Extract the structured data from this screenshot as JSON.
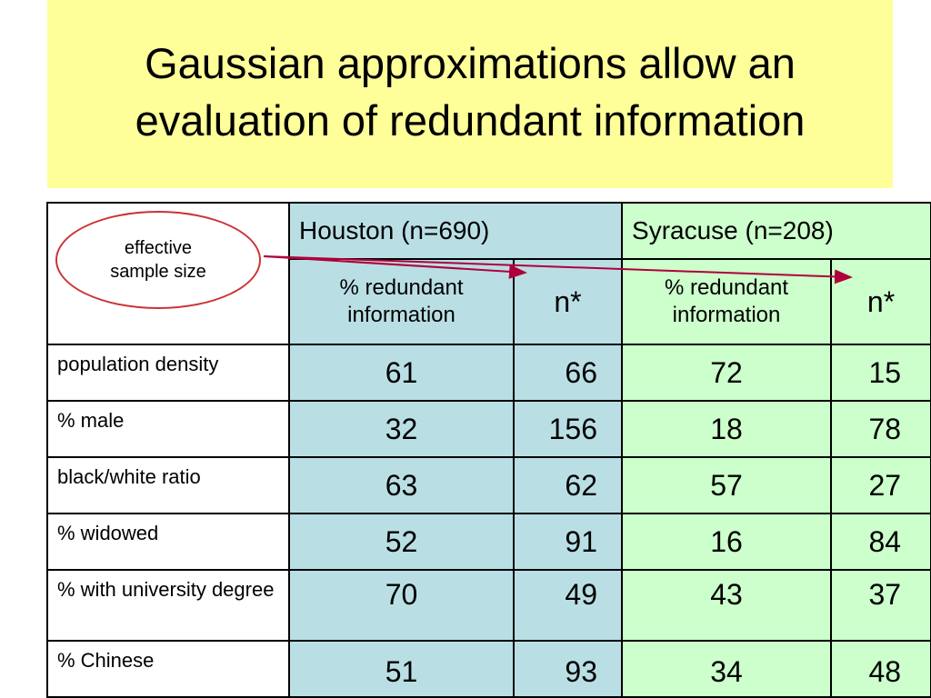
{
  "slide": {
    "title": "Gaussian approximations allow an\nevaluation of redundant information"
  },
  "callout": {
    "text": "effective\nsample size"
  },
  "colors": {
    "title_bg": "#ffff99",
    "houston_bg": "#b9dfe5",
    "syracuse_bg": "#ccffcc",
    "arrow": "#b0003a"
  },
  "table": {
    "houston_header": "Houston (n=690)",
    "syracuse_header": "Syracuse (n=208)",
    "sub_redundant": "% redundant\ninformation",
    "sub_n": "n*",
    "rows": [
      {
        "label": "population density",
        "h_red": "61",
        "h_n": "66",
        "s_red": "72",
        "s_n": "15"
      },
      {
        "label": "% male",
        "h_red": "32",
        "h_n": "156",
        "s_red": "18",
        "s_n": "78"
      },
      {
        "label": "black/white ratio",
        "h_red": "63",
        "h_n": "62",
        "s_red": "57",
        "s_n": "27"
      },
      {
        "label": "% widowed",
        "h_red": "52",
        "h_n": "91",
        "s_red": "16",
        "s_n": "84"
      },
      {
        "label": "% with university degree",
        "h_red": "70",
        "h_n": "49",
        "s_red": "43",
        "s_n": "37"
      },
      {
        "label": "% Chinese",
        "h_red": "51",
        "h_n": "93",
        "s_red": "34",
        "s_n": "48"
      }
    ]
  }
}
